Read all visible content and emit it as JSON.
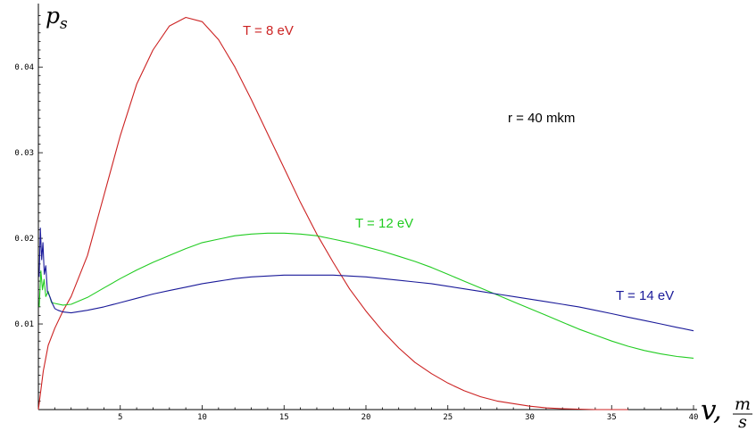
{
  "chart_data": {
    "type": "line",
    "title": "",
    "xlabel": {
      "var": "v",
      "unit_num": "m",
      "unit_den": "s"
    },
    "ylabel": {
      "base": "p",
      "sub": "s"
    },
    "xlim": [
      0,
      40
    ],
    "ylim": [
      0,
      0.047
    ],
    "x_ticks": [
      5,
      10,
      15,
      20,
      25,
      30,
      35,
      40
    ],
    "y_ticks": [
      0.01,
      0.02,
      0.03,
      0.04
    ],
    "grid": false,
    "annotations": [
      {
        "text": "r = 40 mkm"
      }
    ],
    "series": [
      {
        "name": "T = 8 eV",
        "color": "#cc2222",
        "x": [
          0,
          0.3,
          0.6,
          1,
          1.5,
          2,
          3,
          4,
          5,
          6,
          7,
          8,
          9,
          10,
          11,
          12,
          13,
          14,
          15,
          16,
          17,
          18,
          19,
          20,
          21,
          22,
          23,
          24,
          25,
          26,
          27,
          28,
          29,
          30,
          31,
          32,
          33,
          34,
          35,
          36
        ],
        "y": [
          0.0,
          0.0045,
          0.0075,
          0.0095,
          0.0115,
          0.0132,
          0.018,
          0.025,
          0.032,
          0.038,
          0.042,
          0.0448,
          0.0458,
          0.0453,
          0.0432,
          0.04,
          0.0362,
          0.0322,
          0.0282,
          0.0242,
          0.0205,
          0.0172,
          0.0141,
          0.0115,
          0.0092,
          0.0072,
          0.0055,
          0.0042,
          0.0031,
          0.0022,
          0.0015,
          0.001,
          0.0007,
          0.0004,
          0.0002,
          0.0001,
          5e-05,
          0.0,
          0.0,
          0.0
        ]
      },
      {
        "name": "T = 12 eV",
        "color": "#22cc22",
        "x": [
          0.05,
          0.15,
          0.25,
          0.35,
          0.45,
          0.6,
          0.8,
          1,
          1.5,
          2,
          3,
          4,
          5,
          6,
          7,
          8,
          9,
          10,
          11,
          12,
          13,
          14,
          15,
          16,
          17,
          18,
          19,
          20,
          21,
          22,
          23,
          24,
          25,
          26,
          27,
          28,
          29,
          30,
          31,
          32,
          33,
          34,
          35,
          36,
          37,
          38,
          39,
          40
        ],
        "y": [
          0.012,
          0.0162,
          0.014,
          0.0152,
          0.0132,
          0.0138,
          0.0125,
          0.0124,
          0.0122,
          0.0123,
          0.0131,
          0.0142,
          0.0153,
          0.0163,
          0.0172,
          0.018,
          0.0188,
          0.0195,
          0.0199,
          0.0203,
          0.0205,
          0.0206,
          0.0206,
          0.0205,
          0.0203,
          0.0199,
          0.0195,
          0.019,
          0.0185,
          0.0179,
          0.0173,
          0.0166,
          0.0158,
          0.015,
          0.0142,
          0.0134,
          0.0126,
          0.0118,
          0.011,
          0.0102,
          0.0094,
          0.0087,
          0.008,
          0.0074,
          0.0069,
          0.0065,
          0.0062,
          0.006
        ]
      },
      {
        "name": "T = 14 eV",
        "color": "#1a1a99",
        "x": [
          0.05,
          0.12,
          0.2,
          0.28,
          0.36,
          0.45,
          0.55,
          0.7,
          0.85,
          1,
          1.2,
          1.5,
          2,
          3,
          4,
          5,
          6,
          7,
          8,
          9,
          10,
          11,
          12,
          13,
          14,
          15,
          16,
          17,
          18,
          19,
          20,
          21,
          22,
          23,
          24,
          25,
          26,
          27,
          28,
          29,
          30,
          31,
          32,
          33,
          34,
          35,
          36,
          37,
          38,
          39,
          40
        ],
        "y": [
          0.0155,
          0.0212,
          0.0175,
          0.0195,
          0.0158,
          0.0168,
          0.0138,
          0.0132,
          0.0124,
          0.0118,
          0.0116,
          0.0114,
          0.0113,
          0.0116,
          0.012,
          0.0125,
          0.013,
          0.0135,
          0.0139,
          0.0143,
          0.0147,
          0.015,
          0.0153,
          0.0155,
          0.0156,
          0.0157,
          0.0157,
          0.0157,
          0.0157,
          0.0156,
          0.0155,
          0.0153,
          0.0151,
          0.0149,
          0.0147,
          0.0144,
          0.0141,
          0.0138,
          0.0135,
          0.0132,
          0.0129,
          0.0126,
          0.0123,
          0.012,
          0.0116,
          0.0112,
          0.0108,
          0.0104,
          0.01,
          0.0096,
          0.0092
        ]
      }
    ]
  }
}
